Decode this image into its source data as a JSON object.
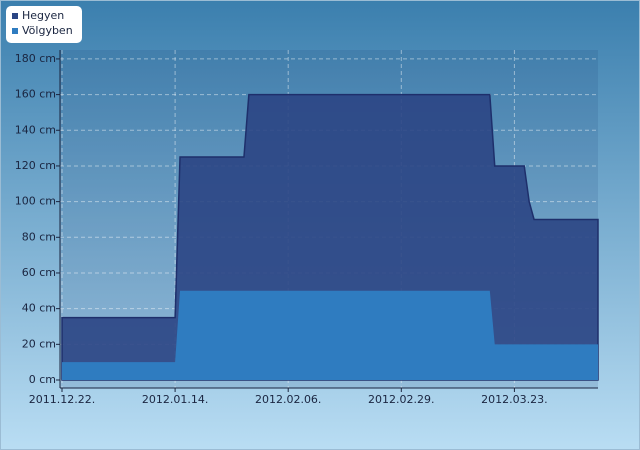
{
  "chart_data": {
    "type": "area",
    "x": [
      "2011-12-22",
      "2012-01-14",
      "2012-01-15",
      "2012-01-28",
      "2012-01-29",
      "2012-03-18",
      "2012-03-19",
      "2012-03-25",
      "2012-03-26",
      "2012-03-27",
      "2012-04-09"
    ],
    "series": [
      {
        "name": "Hegyen",
        "color": "#2b4584",
        "values": [
          35,
          35,
          125,
          125,
          160,
          160,
          120,
          120,
          100,
          90,
          90
        ]
      },
      {
        "name": "Völgyben",
        "color": "#2f7cc0",
        "values": [
          10,
          10,
          50,
          50,
          50,
          50,
          20,
          20,
          20,
          20,
          20
        ]
      }
    ],
    "xlim": [
      "2011-12-22",
      "2012-04-09"
    ],
    "xticks": [
      {
        "value": "2011-12-22",
        "label": "2011.12.22."
      },
      {
        "value": "2012-01-14",
        "label": "2012.01.14."
      },
      {
        "value": "2012-02-06",
        "label": "2012.02.06."
      },
      {
        "value": "2012-02-29",
        "label": "2012.02.29."
      },
      {
        "value": "2012-03-23",
        "label": "2012.03.23."
      }
    ],
    "ylim": [
      0,
      185
    ],
    "yticks": [
      {
        "value": 0,
        "label": "0 cm"
      },
      {
        "value": 20,
        "label": "20 cm"
      },
      {
        "value": 40,
        "label": "40 cm"
      },
      {
        "value": 60,
        "label": "60 cm"
      },
      {
        "value": 80,
        "label": "80 cm"
      },
      {
        "value": 100,
        "label": "100 cm"
      },
      {
        "value": 120,
        "label": "120 cm"
      },
      {
        "value": 140,
        "label": "140 cm"
      },
      {
        "value": 160,
        "label": "160 cm"
      },
      {
        "value": 180,
        "label": "180 cm"
      }
    ],
    "grid": true,
    "legend": "top-left"
  }
}
